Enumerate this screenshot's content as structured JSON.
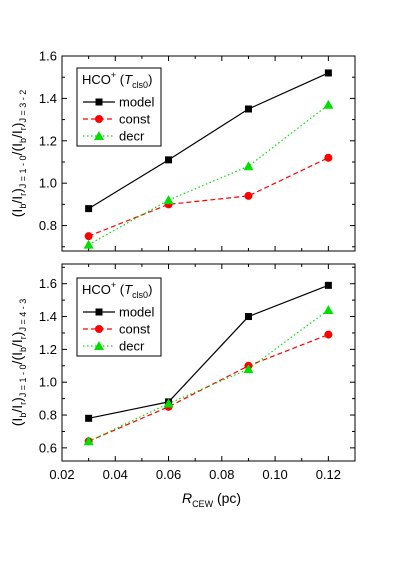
{
  "chart_data": [
    {
      "type": "line",
      "legend_title": "HCO",
      "legend_title_sup": "+",
      "legend_title_paren_var": "T",
      "legend_title_paren_sub": "cls0",
      "legend_position": "top-left",
      "ylabel_parts": [
        "(I",
        "b",
        "/I",
        "r",
        ")",
        "J = 1 - 0",
        "/(I",
        "b",
        "/I",
        "r",
        ")",
        "J = 3 - 2"
      ],
      "x": [
        0.03,
        0.06,
        0.09,
        0.12
      ],
      "xlim": [
        0.02,
        0.13
      ],
      "ylim": [
        0.68,
        1.6
      ],
      "yticks": [
        0.8,
        1.0,
        1.2,
        1.4,
        1.6
      ],
      "ytick_labels": [
        "0.8",
        "1.0",
        "1.2",
        "1.4",
        "1.6"
      ],
      "series": [
        {
          "name": "model",
          "values": [
            0.88,
            1.11,
            1.35,
            1.52
          ],
          "color": "#000000",
          "marker": "square",
          "dash": "solid"
        },
        {
          "name": "const",
          "values": [
            0.75,
            0.9,
            0.94,
            1.12
          ],
          "color": "#ff0000",
          "marker": "circle",
          "dash": "dashed"
        },
        {
          "name": "decr",
          "values": [
            0.71,
            0.92,
            1.08,
            1.37
          ],
          "color": "#00e000",
          "marker": "triangle",
          "dash": "dotted"
        }
      ]
    },
    {
      "type": "line",
      "legend_title": "HCO",
      "legend_title_sup": "+",
      "legend_title_paren_var": "T",
      "legend_title_paren_sub": "cls0",
      "legend_position": "top-left",
      "ylabel_parts": [
        "(I",
        "b",
        "/I",
        "r",
        ")",
        "J = 1 - 0",
        "/(I",
        "b",
        "/I",
        "r",
        ")",
        "J = 4 - 3"
      ],
      "x": [
        0.03,
        0.06,
        0.09,
        0.12
      ],
      "xlim": [
        0.02,
        0.13
      ],
      "ylim": [
        0.52,
        1.72
      ],
      "yticks": [
        0.6,
        0.8,
        1.0,
        1.2,
        1.4,
        1.6
      ],
      "ytick_labels": [
        "0.6",
        "0.8",
        "1.0",
        "1.2",
        "1.4",
        "1.6"
      ],
      "xticks": [
        0.02,
        0.04,
        0.06,
        0.08,
        0.1,
        0.12
      ],
      "xtick_labels": [
        "0.02",
        "0.04",
        "0.06",
        "0.08",
        "0.10",
        "0.12"
      ],
      "xlabel_var": "R",
      "xlabel_sub": "CEW",
      "xlabel_unit": " (pc)",
      "series": [
        {
          "name": "model",
          "values": [
            0.78,
            0.88,
            1.4,
            1.59
          ],
          "color": "#000000",
          "marker": "square",
          "dash": "solid"
        },
        {
          "name": "const",
          "values": [
            0.64,
            0.85,
            1.1,
            1.29
          ],
          "color": "#ff0000",
          "marker": "circle",
          "dash": "dashed"
        },
        {
          "name": "decr",
          "values": [
            0.64,
            0.87,
            1.08,
            1.44
          ],
          "color": "#00e000",
          "marker": "triangle",
          "dash": "dotted"
        }
      ]
    }
  ]
}
